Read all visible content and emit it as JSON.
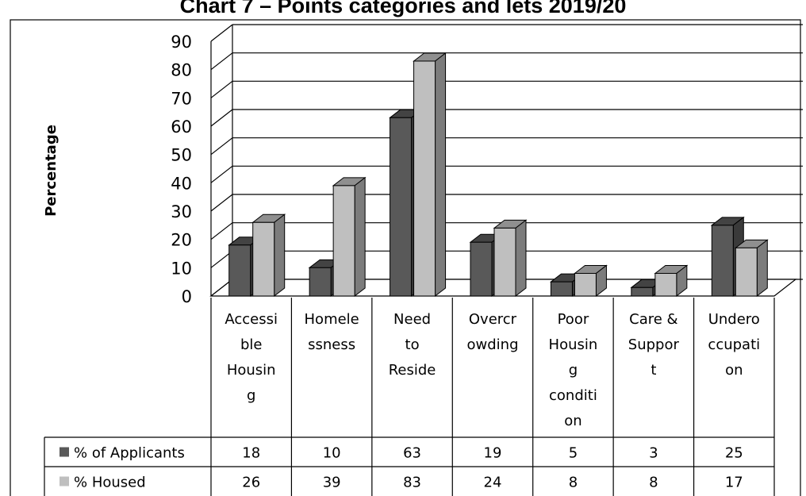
{
  "chart_data": {
    "type": "bar",
    "title": "Chart 7 – Points categories and lets 2019/20",
    "xlabel": "",
    "ylabel": "Percentage",
    "ylim": [
      0,
      90
    ],
    "yticks": [
      0,
      10,
      20,
      30,
      40,
      50,
      60,
      70,
      80,
      90
    ],
    "grid": true,
    "legend": "data-table",
    "categories": [
      "Accessi|ble|Housin|g",
      "Homele|ssness",
      "Need|to|Reside",
      "Overcr|owding",
      "Poor|Housin|g|conditi|on",
      "Care &|Suppor|t",
      "Undero|ccupati|on"
    ],
    "series": [
      {
        "name": "% of Applicants",
        "values": [
          18,
          10,
          63,
          19,
          5,
          3,
          25
        ],
        "color": "#595959"
      },
      {
        "name": "% Housed",
        "values": [
          26,
          39,
          83,
          24,
          8,
          8,
          17
        ],
        "color": "#bfbfbf"
      }
    ]
  }
}
